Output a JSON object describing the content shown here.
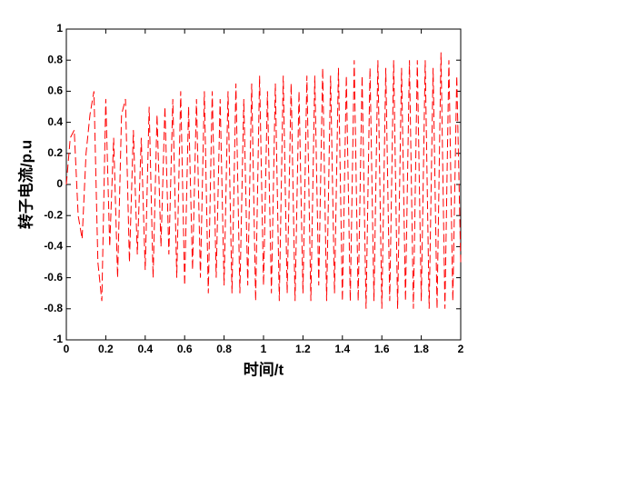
{
  "chart_data": {
    "type": "line",
    "xlabel": "时间/t",
    "ylabel": "转子电流/p.u",
    "x": [
      0,
      0.02,
      0.04,
      0.06,
      0.08,
      0.1,
      0.12,
      0.14,
      0.16,
      0.18,
      0.2,
      0.22,
      0.24,
      0.26,
      0.28,
      0.3,
      0.32,
      0.34,
      0.36,
      0.38,
      0.4,
      0.42,
      0.44,
      0.46,
      0.48,
      0.5,
      0.52,
      0.54,
      0.56,
      0.58,
      0.6,
      0.62,
      0.64,
      0.66,
      0.68,
      0.7,
      0.72,
      0.74,
      0.76,
      0.78,
      0.8,
      0.82,
      0.84,
      0.86,
      0.88,
      0.9,
      0.92,
      0.94,
      0.96,
      0.98,
      1,
      1.02,
      1.04,
      1.06,
      1.08,
      1.1,
      1.12,
      1.14,
      1.16,
      1.18,
      1.2,
      1.22,
      1.24,
      1.26,
      1.28,
      1.3,
      1.32,
      1.34,
      1.36,
      1.38,
      1.4,
      1.42,
      1.44,
      1.46,
      1.48,
      1.5,
      1.52,
      1.54,
      1.56,
      1.58,
      1.6,
      1.62,
      1.64,
      1.66,
      1.68,
      1.7,
      1.72,
      1.74,
      1.76,
      1.78,
      1.8,
      1.82,
      1.84,
      1.86,
      1.88,
      1.9,
      1.92,
      1.94,
      1.96,
      1.98,
      2
    ],
    "y": [
      0,
      0.3,
      0.35,
      -0.2,
      -0.35,
      0.2,
      0.45,
      0.6,
      -0.5,
      -0.75,
      0.55,
      -0.4,
      0.3,
      -0.6,
      0.45,
      0.55,
      -0.5,
      0.35,
      -0.45,
      0.3,
      -0.55,
      0.5,
      -0.6,
      0.45,
      -0.4,
      0.5,
      -0.45,
      0.55,
      -0.6,
      0.6,
      -0.65,
      0.5,
      -0.55,
      0.55,
      -0.6,
      0.6,
      -0.7,
      0.6,
      -0.6,
      0.55,
      -0.65,
      0.6,
      -0.7,
      0.65,
      -0.7,
      0.55,
      -0.65,
      0.65,
      -0.75,
      0.7,
      -0.65,
      0.6,
      -0.7,
      0.65,
      -0.75,
      0.7,
      -0.7,
      0.65,
      -0.75,
      0.6,
      -0.7,
      0.7,
      -0.75,
      0.7,
      -0.65,
      0.75,
      -0.75,
      0.7,
      -0.7,
      0.75,
      -0.75,
      0.7,
      -0.75,
      0.8,
      -0.75,
      0.7,
      -0.8,
      0.75,
      -0.75,
      0.8,
      -0.8,
      0.75,
      -0.75,
      0.8,
      -0.8,
      0.75,
      -0.75,
      0.8,
      -0.8,
      0.8,
      -0.75,
      0.8,
      -0.8,
      0.75,
      -0.8,
      0.85,
      -0.8,
      0.8,
      -0.75,
      0.7,
      -0.5
    ],
    "color": "#ff0000",
    "line_style": "dashed",
    "xlim": [
      0,
      2
    ],
    "xticks": [
      0,
      0.2,
      0.4,
      0.6,
      0.8,
      1,
      1.2,
      1.4,
      1.6,
      1.8,
      2
    ],
    "ylim": [
      -1,
      1
    ],
    "yticks": [
      -1,
      -0.8,
      -0.6,
      -0.4,
      -0.2,
      0,
      0.2,
      0.4,
      0.6,
      0.8,
      1
    ]
  }
}
